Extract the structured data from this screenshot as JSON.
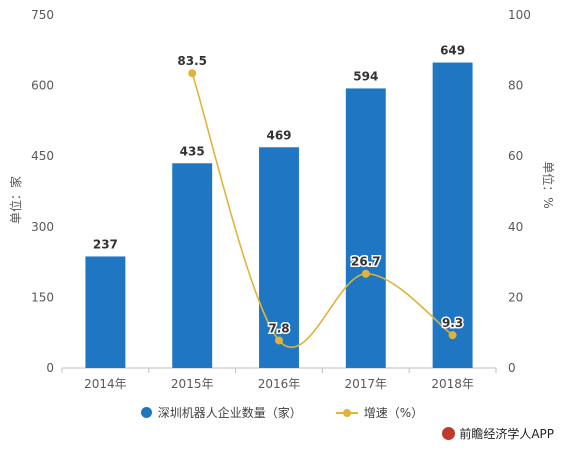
{
  "chart_data": {
    "type": "bar",
    "categories": [
      "2014年",
      "2015年",
      "2016年",
      "2017年",
      "2018年"
    ],
    "series": [
      {
        "name": "深圳机器人企业数量（家）",
        "type": "bar",
        "axis": "left",
        "values": [
          237,
          435,
          469,
          594,
          649
        ],
        "color": "#1f77c4"
      },
      {
        "name": "增速（%）",
        "type": "line",
        "axis": "right",
        "values": [
          null,
          83.5,
          7.8,
          26.7,
          9.3
        ],
        "color": "#e0b43a"
      }
    ],
    "ylabel_left": "单位：家",
    "ylabel_right": "单位：%",
    "ylim_left": [
      0,
      750
    ],
    "yticks_left": [
      0,
      150,
      300,
      450,
      600,
      750
    ],
    "ylim_right": [
      0,
      100
    ],
    "yticks_right": [
      0,
      20,
      40,
      60,
      80,
      100
    ],
    "grid": false,
    "legend_position": "bottom"
  },
  "source": "前瞻经济学人APP",
  "colors": {
    "bar": "#1f77c4",
    "line": "#e0b43a",
    "axis": "#bfbfbf"
  }
}
